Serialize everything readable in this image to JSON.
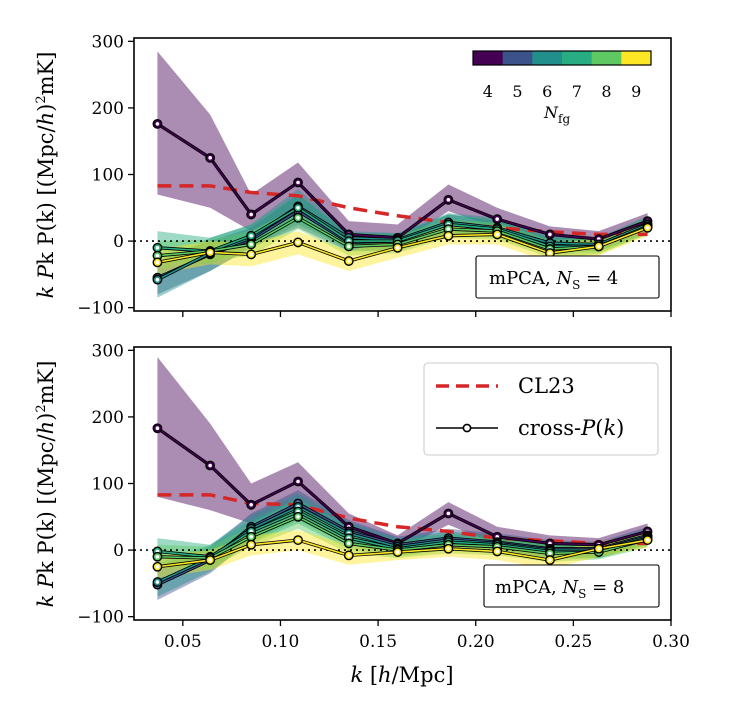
{
  "chart_data": [
    {
      "type": "line",
      "panel": "top",
      "annotation": "mPCA, N_S = 4",
      "annotation_parts": [
        "mPCA, ",
        "N",
        "S",
        " = 4"
      ],
      "ylabel": "k P(k) [(Mpc/h)^2 mK]",
      "ylabel_parts": [
        "k P(k) [(Mpc/",
        "h",
        ")",
        "2",
        "mK]"
      ],
      "ylim": [
        -105,
        305
      ],
      "yticks": [
        -100,
        0,
        100,
        200,
        300
      ],
      "xlim": [
        0.025,
        0.3
      ],
      "x": [
        0.037,
        0.064,
        0.085,
        0.109,
        0.135,
        0.16,
        0.186,
        0.211,
        0.238,
        0.263,
        0.288
      ],
      "cl23": {
        "x": [
          0.037,
          0.064,
          0.085,
          0.109,
          0.135,
          0.16,
          0.186,
          0.211,
          0.238,
          0.263,
          0.288
        ],
        "values": [
          83,
          83,
          73,
          68,
          50,
          38,
          28,
          20,
          14,
          10,
          10
        ]
      },
      "series": [
        {
          "name": "N_fg = 4",
          "values": [
            176,
            125,
            40,
            88,
            10,
            5,
            62,
            33,
            10,
            3,
            30
          ],
          "band": [
            [
              70,
              285
            ],
            [
              50,
              190
            ],
            [
              15,
              70
            ],
            [
              50,
              118
            ],
            [
              -5,
              30
            ],
            [
              -5,
              25
            ],
            [
              45,
              85
            ],
            [
              20,
              50
            ],
            [
              -2,
              22
            ],
            [
              -8,
              15
            ],
            [
              15,
              42
            ]
          ]
        },
        {
          "name": "N_fg = 5",
          "values": [
            -55,
            -20,
            2,
            45,
            -2,
            0,
            25,
            18,
            -5,
            -5,
            25
          ],
          "band": [
            [
              -80,
              -30
            ],
            [
              -45,
              0
            ],
            [
              -10,
              20
            ],
            [
              20,
              70
            ],
            [
              -15,
              10
            ],
            [
              -15,
              10
            ],
            [
              10,
              40
            ],
            [
              5,
              30
            ],
            [
              -15,
              5
            ],
            [
              -15,
              5
            ],
            [
              12,
              35
            ]
          ]
        },
        {
          "name": "N_fg = 6",
          "values": [
            -58,
            -18,
            5,
            52,
            5,
            2,
            28,
            20,
            -3,
            -5,
            25
          ],
          "band": [
            [
              -85,
              -35
            ],
            [
              -45,
              5
            ],
            [
              -10,
              25
            ],
            [
              25,
              78
            ],
            [
              -10,
              15
            ],
            [
              -12,
              12
            ],
            [
              12,
              42
            ],
            [
              5,
              35
            ],
            [
              -15,
              8
            ],
            [
              -15,
              5
            ],
            [
              12,
              38
            ]
          ]
        },
        {
          "name": "N_fg = 7",
          "values": [
            -10,
            -15,
            8,
            50,
            0,
            0,
            25,
            18,
            -8,
            -8,
            22
          ],
          "band": [
            [
              -30,
              15
            ],
            [
              -35,
              5
            ],
            [
              -8,
              25
            ],
            [
              30,
              70
            ],
            [
              -15,
              12
            ],
            [
              -15,
              12
            ],
            [
              10,
              40
            ],
            [
              5,
              32
            ],
            [
              -20,
              5
            ],
            [
              -18,
              5
            ],
            [
              10,
              35
            ]
          ]
        },
        {
          "name": "N_fg = 8",
          "values": [
            -22,
            -15,
            -5,
            35,
            -8,
            -5,
            18,
            15,
            -12,
            -8,
            22
          ],
          "band": [
            [
              -40,
              0
            ],
            [
              -30,
              2
            ],
            [
              -22,
              15
            ],
            [
              18,
              52
            ],
            [
              -22,
              5
            ],
            [
              -18,
              8
            ],
            [
              5,
              32
            ],
            [
              2,
              28
            ],
            [
              -25,
              2
            ],
            [
              -20,
              4
            ],
            [
              10,
              35
            ]
          ]
        },
        {
          "name": "N_fg = 9",
          "values": [
            -32,
            -17,
            -20,
            -2,
            -30,
            -10,
            8,
            10,
            -18,
            -8,
            20
          ],
          "band": [
            [
              -50,
              -12
            ],
            [
              -35,
              0
            ],
            [
              -38,
              -2
            ],
            [
              -20,
              15
            ],
            [
              -45,
              -15
            ],
            [
              -25,
              5
            ],
            [
              -5,
              22
            ],
            [
              -5,
              25
            ],
            [
              -32,
              -5
            ],
            [
              -22,
              5
            ],
            [
              8,
              32
            ]
          ]
        }
      ],
      "legend": [],
      "colorbar": {
        "label": "N_fg",
        "ticks": [
          4,
          5,
          6,
          7,
          8,
          9
        ],
        "colors": [
          "#440154",
          "#3b528b",
          "#21908c",
          "#27ad81",
          "#5ec962",
          "#fde725"
        ]
      }
    },
    {
      "type": "line",
      "panel": "bottom",
      "annotation": "mPCA, N_S = 8",
      "annotation_parts": [
        "mPCA, ",
        "N",
        "S",
        " = 8"
      ],
      "ylabel": "k P(k) [(Mpc/h)^2 mK]",
      "ylabel_parts": [
        "k P(k) [(Mpc/",
        "h",
        ")",
        "2",
        "mK]"
      ],
      "xlabel": "k [h/Mpc]",
      "xlabel_parts": [
        "k",
        " [",
        "h",
        "/Mpc]"
      ],
      "ylim": [
        -105,
        305
      ],
      "yticks": [
        -100,
        0,
        100,
        200,
        300
      ],
      "xlim": [
        0.025,
        0.3
      ],
      "xticks": [
        0.05,
        0.1,
        0.15,
        0.2,
        0.25,
        0.3
      ],
      "xticklabels": [
        "0.05",
        "0.10",
        "0.15",
        "0.20",
        "0.25",
        "0.30"
      ],
      "x": [
        0.037,
        0.064,
        0.085,
        0.109,
        0.135,
        0.16,
        0.186,
        0.211,
        0.238,
        0.263,
        0.288
      ],
      "cl23": {
        "x": [
          0.037,
          0.064,
          0.085,
          0.109,
          0.135,
          0.16,
          0.186,
          0.211,
          0.238,
          0.263,
          0.288
        ],
        "values": [
          83,
          83,
          70,
          68,
          48,
          35,
          28,
          18,
          14,
          10,
          10
        ]
      },
      "series": [
        {
          "name": "N_fg = 4",
          "values": [
            183,
            127,
            68,
            103,
            35,
            10,
            55,
            20,
            10,
            8,
            28
          ],
          "band": [
            [
              80,
              290
            ],
            [
              60,
              190
            ],
            [
              40,
              100
            ],
            [
              75,
              132
            ],
            [
              15,
              55
            ],
            [
              -2,
              22
            ],
            [
              38,
              72
            ],
            [
              8,
              35
            ],
            [
              -2,
              22
            ],
            [
              -2,
              18
            ],
            [
              15,
              40
            ]
          ]
        },
        {
          "name": "N_fg = 5",
          "values": [
            -52,
            -15,
            35,
            70,
            28,
            8,
            18,
            12,
            2,
            2,
            22
          ],
          "band": [
            [
              -75,
              -25
            ],
            [
              -35,
              5
            ],
            [
              15,
              55
            ],
            [
              50,
              90
            ],
            [
              10,
              45
            ],
            [
              -5,
              20
            ],
            [
              5,
              32
            ],
            [
              0,
              25
            ],
            [
              -10,
              15
            ],
            [
              -10,
              12
            ],
            [
              10,
              35
            ]
          ]
        },
        {
          "name": "N_fg = 6",
          "values": [
            -48,
            -12,
            32,
            65,
            25,
            5,
            15,
            10,
            0,
            0,
            20
          ],
          "band": [
            [
              -70,
              -20
            ],
            [
              -32,
              8
            ],
            [
              12,
              52
            ],
            [
              45,
              85
            ],
            [
              8,
              42
            ],
            [
              -8,
              18
            ],
            [
              2,
              28
            ],
            [
              -2,
              22
            ],
            [
              -12,
              12
            ],
            [
              -12,
              10
            ],
            [
              8,
              32
            ]
          ]
        },
        {
          "name": "N_fg = 7",
          "values": [
            -2,
            -10,
            28,
            58,
            18,
            2,
            12,
            8,
            -2,
            -2,
            18
          ],
          "band": [
            [
              -20,
              18
            ],
            [
              -28,
              8
            ],
            [
              10,
              45
            ],
            [
              40,
              78
            ],
            [
              2,
              35
            ],
            [
              -10,
              15
            ],
            [
              0,
              25
            ],
            [
              -5,
              20
            ],
            [
              -15,
              10
            ],
            [
              -12,
              8
            ],
            [
              6,
              30
            ]
          ]
        },
        {
          "name": "N_fg = 8",
          "values": [
            -10,
            -12,
            20,
            50,
            10,
            0,
            8,
            5,
            -5,
            -3,
            16
          ],
          "band": [
            [
              -28,
              8
            ],
            [
              -28,
              5
            ],
            [
              5,
              35
            ],
            [
              32,
              68
            ],
            [
              -5,
              25
            ],
            [
              -12,
              12
            ],
            [
              -5,
              20
            ],
            [
              -8,
              18
            ],
            [
              -18,
              8
            ],
            [
              -14,
              8
            ],
            [
              4,
              28
            ]
          ]
        },
        {
          "name": "N_fg = 9",
          "values": [
            -25,
            -15,
            8,
            15,
            -8,
            -3,
            2,
            -2,
            -15,
            2,
            15
          ],
          "band": [
            [
              -42,
              -8
            ],
            [
              -30,
              0
            ],
            [
              -8,
              22
            ],
            [
              0,
              30
            ],
            [
              -22,
              8
            ],
            [
              -15,
              8
            ],
            [
              -10,
              15
            ],
            [
              -15,
              12
            ],
            [
              -28,
              -2
            ],
            [
              -10,
              12
            ],
            [
              4,
              28
            ]
          ]
        }
      ],
      "legend": [
        {
          "label": "CL23",
          "style": "dashed-red"
        },
        {
          "label": "cross-P(k)",
          "label_parts": [
            "cross-",
            "P",
            "(",
            "k",
            ")"
          ],
          "style": "line-marker"
        }
      ]
    }
  ],
  "colors": {
    "cl23": "#d62728",
    "zero_line": "#000000"
  }
}
